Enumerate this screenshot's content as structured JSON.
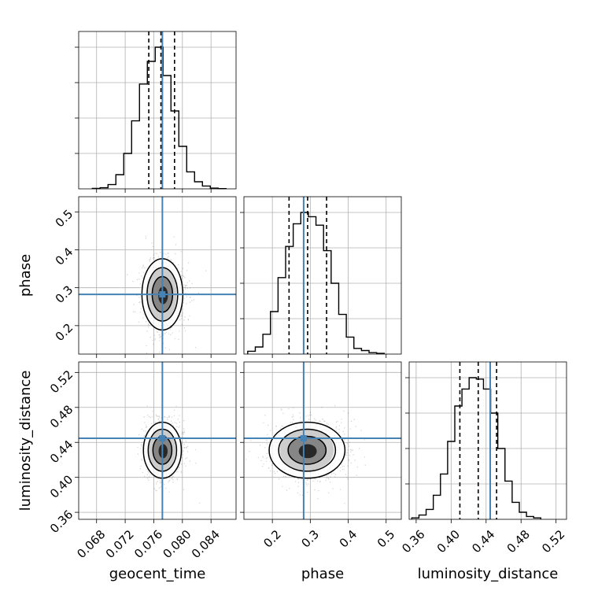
{
  "chart_data": {
    "type": "corner",
    "parameters": [
      "geocent_time",
      "phase",
      "luminosity_distance"
    ],
    "truths": {
      "geocent_time": 0.0772,
      "phase": 0.2825,
      "luminosity_distance": 0.4447
    },
    "colors": {
      "truth": "#4682b4",
      "hist": "#000000",
      "grid": "#b0b0b0"
    },
    "axes": {
      "geocent_time": {
        "range": [
          0.0655,
          0.0875
        ],
        "ticks": [
          0.068,
          0.072,
          0.076,
          0.08,
          0.084
        ],
        "tick_labels": [
          "0.068",
          "0.072",
          "0.076",
          "0.080",
          "0.084"
        ]
      },
      "phase": {
        "range": [
          0.125,
          0.54
        ],
        "ticks": [
          0.2,
          0.3,
          0.4,
          0.5
        ],
        "tick_labels": [
          "0.2",
          "0.3",
          "0.4",
          "0.5"
        ]
      },
      "luminosity_distance": {
        "range": [
          0.352,
          0.532
        ],
        "ticks": [
          0.36,
          0.4,
          0.44,
          0.48,
          0.52
        ],
        "tick_labels": [
          "0.36",
          "0.40",
          "0.44",
          "0.48",
          "0.52"
        ]
      }
    },
    "histograms": {
      "geocent_time": {
        "bin_edges": [
          0.0674,
          0.0685,
          0.0696,
          0.0707,
          0.0718,
          0.0729,
          0.074,
          0.0751,
          0.0762,
          0.0773,
          0.0784,
          0.0795,
          0.0806,
          0.0817,
          0.0828,
          0.0839,
          0.085,
          0.0861
        ],
        "counts": [
          0.003,
          0.008,
          0.03,
          0.1,
          0.25,
          0.48,
          0.74,
          0.9,
          1.0,
          0.8,
          0.55,
          0.3,
          0.12,
          0.05,
          0.02,
          0.005,
          0.002
        ],
        "quantile_lines": [
          0.0753,
          0.077,
          0.0789
        ]
      },
      "phase": {
        "bin_edges": [
          0.135,
          0.155,
          0.175,
          0.195,
          0.215,
          0.235,
          0.255,
          0.275,
          0.295,
          0.315,
          0.335,
          0.355,
          0.375,
          0.395,
          0.415,
          0.435,
          0.455,
          0.475,
          0.495
        ],
        "counts": [
          0.02,
          0.05,
          0.14,
          0.3,
          0.54,
          0.76,
          0.92,
          1.0,
          0.97,
          0.91,
          0.73,
          0.5,
          0.28,
          0.12,
          0.04,
          0.025,
          0.01,
          0.005
        ],
        "quantile_lines": [
          0.244,
          0.293,
          0.343
        ]
      },
      "luminosity_distance": {
        "bin_edges": [
          0.355,
          0.3632,
          0.3714,
          0.3796,
          0.3878,
          0.396,
          0.4042,
          0.4124,
          0.4206,
          0.4288,
          0.437,
          0.4452,
          0.4534,
          0.4616,
          0.4698,
          0.478,
          0.4862,
          0.4944,
          0.5026
        ],
        "counts": [
          0.01,
          0.03,
          0.07,
          0.17,
          0.32,
          0.55,
          0.8,
          0.92,
          1.0,
          0.99,
          0.92,
          0.75,
          0.5,
          0.27,
          0.12,
          0.05,
          0.02,
          0.01
        ],
        "quantile_lines": [
          0.41,
          0.431,
          0.452
        ]
      }
    },
    "pair_panels": [
      {
        "x": "geocent_time",
        "y": "phase",
        "center": [
          0.0772,
          0.2825
        ],
        "spread": [
          0.0014,
          0.047
        ]
      },
      {
        "x": "geocent_time",
        "y": "luminosity_distance",
        "center": [
          0.0772,
          0.431
        ],
        "spread": [
          0.0013,
          0.016
        ]
      },
      {
        "x": "phase",
        "y": "luminosity_distance",
        "center": [
          0.2915,
          0.431
        ],
        "spread": [
          0.049,
          0.016
        ]
      }
    ],
    "axis_labels": {
      "geocent_time": "geocent_time",
      "phase": "phase",
      "luminosity_distance": "luminosity_distance"
    },
    "grid": true
  }
}
